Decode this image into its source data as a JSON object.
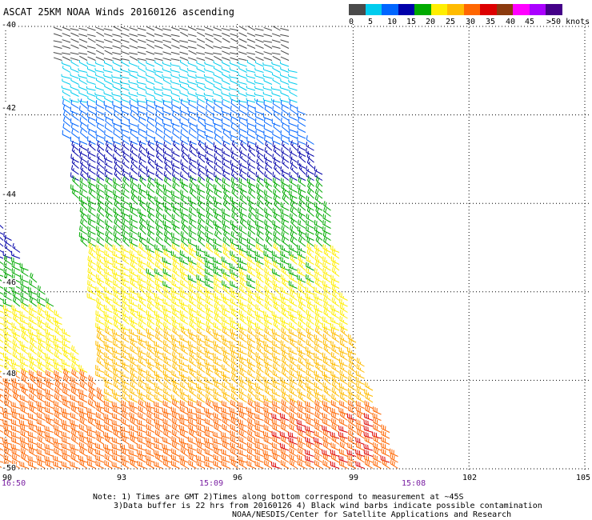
{
  "header": {
    "title": "ASCAT 25KM NOAA Winds 20160126 ascending"
  },
  "legend": {
    "colors": [
      "#4a4a4a",
      "#00ccee",
      "#0066ff",
      "#0000aa",
      "#00aa00",
      "#ffee00",
      "#ffbb00",
      "#ff6600",
      "#dd0000",
      "#8b3a0e",
      "#ff00ff",
      "#aa00ff",
      "#440088"
    ],
    "labels": [
      "0",
      "5",
      "10",
      "15",
      "20",
      "25",
      "30",
      "35",
      "40",
      "45",
      ">50 knots"
    ]
  },
  "axes": {
    "lat_labels": [
      "-40",
      "-42",
      "-44",
      "-46",
      "-48",
      "-50"
    ],
    "lon_labels": [
      "90",
      "93",
      "96",
      "99",
      "102",
      "105"
    ]
  },
  "times": {
    "left": "16:50",
    "middle": "15:09",
    "right": "15:08"
  },
  "notes": {
    "line1": "Note: 1) Times are GMT 2)Times along bottom correspond to measurement at ~45S",
    "line2": "3)Data buffer is 22 hrs from 20160126 4) Black wind barbs indicate possible contamination",
    "line3": "NOAA/NESDIS/Center for Satellite Applications and Research"
  },
  "wind_field": {
    "region": {
      "lat_range": [
        -50,
        -40
      ],
      "lon_range": [
        90,
        105
      ]
    },
    "speed_units": "knots",
    "bands": [
      {
        "lat_from": -40.0,
        "lat_to": -40.8,
        "speed_kt": 3,
        "dir_deg": 290,
        "color": "#4a4a4a"
      },
      {
        "lat_from": -40.8,
        "lat_to": -41.8,
        "speed_kt": 8,
        "dir_deg": 290,
        "color": "#00ccee"
      },
      {
        "lat_from": -41.8,
        "lat_to": -42.8,
        "speed_kt": 12,
        "dir_deg": 300,
        "color": "#0066ff"
      },
      {
        "lat_from": -42.8,
        "lat_to": -43.6,
        "speed_kt": 17,
        "dir_deg": 305,
        "color": "#0000aa"
      },
      {
        "lat_from": -43.6,
        "lat_to": -45.0,
        "speed_kt": 22,
        "dir_deg": 305,
        "color": "#00aa00"
      },
      {
        "lat_from": -45.0,
        "lat_to": -47.0,
        "speed_kt": 25,
        "dir_deg": 300,
        "color": "#ffee00"
      },
      {
        "lat_from": -47.0,
        "lat_to": -48.5,
        "speed_kt": 28,
        "dir_deg": 300,
        "color": "#ffbb00"
      },
      {
        "lat_from": -48.5,
        "lat_to": -50.0,
        "speed_kt": 33,
        "dir_deg": 295,
        "color": "#ff6600"
      }
    ]
  }
}
